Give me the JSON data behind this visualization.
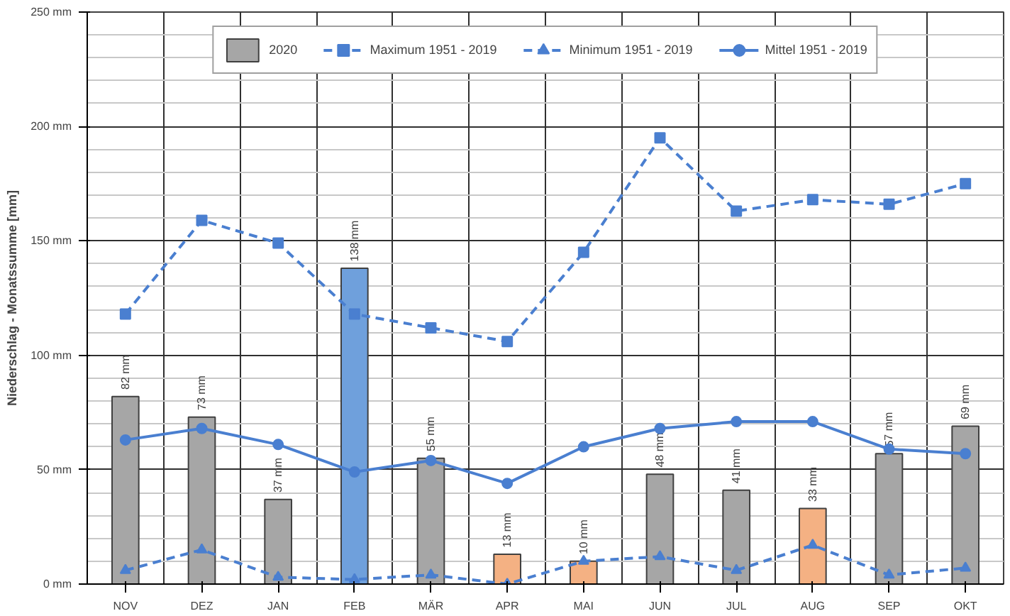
{
  "chart_data": {
    "type": "bar",
    "ylabel": "Niederschlag - Monatssumme [mm]",
    "categories": [
      "NOV",
      "DEZ",
      "JAN",
      "FEB",
      "MÄR",
      "APR",
      "MAI",
      "JUN",
      "JUL",
      "AUG",
      "SEP",
      "OKT"
    ],
    "series": [
      {
        "name": "2020",
        "colors": [
          "#a6a6a6",
          "#a6a6a6",
          "#a6a6a6",
          "#6fa0dc",
          "#a6a6a6",
          "#f4b183",
          "#f4b183",
          "#a6a6a6",
          "#a6a6a6",
          "#f4b183",
          "#a6a6a6",
          "#a6a6a6"
        ],
        "values": [
          82,
          73,
          37,
          138,
          55,
          13,
          10,
          48,
          41,
          33,
          57,
          69
        ],
        "value_labels": [
          "82 mm",
          "73 mm",
          "37 mm",
          "138 mm",
          "55 mm",
          "13 mm",
          "10 mm",
          "48 mm",
          "41 mm",
          "33 mm",
          "57 mm",
          "69 mm"
        ]
      },
      {
        "name": "Maximum 1951 - 2019",
        "type": "line",
        "color": "#4a7fd0",
        "marker": "square",
        "line_style": "dashed",
        "values": [
          118,
          159,
          149,
          118,
          112,
          106,
          145,
          195,
          163,
          168,
          166,
          175
        ]
      },
      {
        "name": "Minimum 1951 - 2019",
        "type": "line",
        "color": "#4a7fd0",
        "marker": "triangle",
        "line_style": "dashed",
        "values": [
          6,
          15,
          3,
          2,
          4,
          0,
          10,
          12,
          6,
          17,
          4,
          7
        ]
      },
      {
        "name": "Mittel 1951 - 2019",
        "type": "line",
        "color": "#4a7fd0",
        "marker": "circle",
        "line_style": "solid",
        "values": [
          63,
          68,
          61,
          49,
          54,
          44,
          60,
          68,
          71,
          71,
          59,
          57
        ]
      }
    ],
    "ylim": [
      0,
      250
    ],
    "yticks": [
      {
        "value": 0,
        "label": "0 mm"
      },
      {
        "value": 50,
        "label": "50 mm"
      },
      {
        "value": 100,
        "label": "100 mm"
      },
      {
        "value": 150,
        "label": "150 mm"
      },
      {
        "value": 200,
        "label": "200 mm"
      },
      {
        "value": 250,
        "label": "250 mm"
      }
    ],
    "grid": true,
    "legend": "top"
  }
}
